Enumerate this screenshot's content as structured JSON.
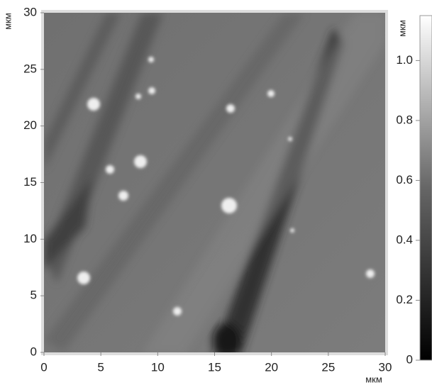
{
  "chart_data": {
    "type": "image",
    "x_label": "мкм",
    "y_label": "мкм",
    "colorbar_label": "мкм",
    "xlim": [
      0,
      30
    ],
    "xticks": [
      0,
      5,
      10,
      15,
      20,
      25,
      30
    ],
    "ylim": [
      0,
      30
    ],
    "yticks": [
      0,
      5,
      10,
      15,
      20,
      25,
      30
    ],
    "clim": [
      0,
      1.15
    ],
    "cticks": [
      0,
      0.2,
      0.4,
      0.6,
      0.8,
      {
        "value": 1,
        "label": "1.0"
      }
    ]
  }
}
